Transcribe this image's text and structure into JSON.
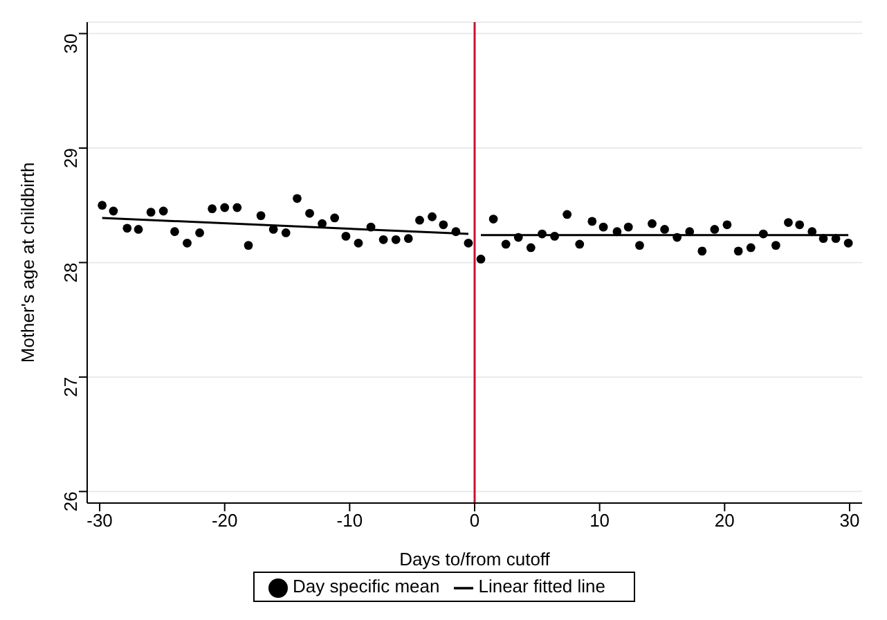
{
  "chart_data": {
    "type": "scatter",
    "xlabel": "Days to/from cutoff",
    "ylabel": "Mother's age at childbirth",
    "xlim": [
      -31,
      31
    ],
    "xticks": [
      -30,
      -20,
      -10,
      0,
      10,
      20,
      30
    ],
    "ylim": [
      25.9,
      30.1
    ],
    "yticks": [
      26,
      27,
      28,
      29,
      30
    ],
    "grid": "y",
    "legend": "bottom",
    "ref_lines": [
      {
        "axis": "x",
        "value": 0,
        "color": "#c8102e"
      }
    ],
    "series": [
      {
        "name": "Day specific mean",
        "marker": "circle",
        "color": "#000000",
        "x": [
          -29.8,
          -28.9,
          -27.8,
          -26.9,
          -25.9,
          -24.9,
          -24.0,
          -23.0,
          -22.0,
          -21.0,
          -20.0,
          -19.0,
          -18.1,
          -17.1,
          -16.1,
          -15.1,
          -14.2,
          -13.2,
          -12.2,
          -11.2,
          -10.3,
          -9.3,
          -8.3,
          -7.3,
          -6.3,
          -5.3,
          -4.4,
          -3.4,
          -2.5,
          -1.5,
          -0.5,
          0.5,
          1.5,
          2.5,
          3.5,
          4.5,
          5.4,
          6.4,
          7.4,
          8.4,
          9.4,
          10.3,
          11.4,
          12.3,
          13.2,
          14.2,
          15.2,
          16.2,
          17.2,
          18.2,
          19.2,
          20.2,
          21.1,
          22.1,
          23.1,
          24.1,
          25.1,
          26.0,
          27.0,
          27.9,
          28.9,
          29.9
        ],
        "values": [
          28.5,
          28.45,
          28.3,
          28.29,
          28.44,
          28.45,
          28.27,
          28.17,
          28.26,
          28.47,
          28.48,
          28.48,
          28.15,
          28.41,
          28.29,
          28.26,
          28.56,
          28.43,
          28.34,
          28.39,
          28.23,
          28.17,
          28.31,
          28.2,
          28.2,
          28.21,
          28.37,
          28.4,
          28.33,
          28.27,
          28.17,
          28.03,
          28.38,
          28.16,
          28.22,
          28.13,
          28.25,
          28.23,
          28.42,
          28.16,
          28.36,
          28.31,
          28.27,
          28.31,
          28.15,
          28.34,
          28.29,
          28.22,
          28.27,
          28.1,
          28.29,
          28.33,
          28.1,
          28.13,
          28.25,
          28.15,
          28.35,
          28.33,
          28.27,
          28.21,
          28.21,
          28.17
        ]
      },
      {
        "name": "Linear fitted line",
        "type": "line",
        "color": "#000000",
        "x": [
          -29.8,
          -0.5
        ],
        "values": [
          28.39,
          28.25
        ]
      },
      {
        "type": "line",
        "color": "#000000",
        "x": [
          0.5,
          29.9
        ],
        "values": [
          28.24,
          28.24
        ]
      }
    ]
  }
}
